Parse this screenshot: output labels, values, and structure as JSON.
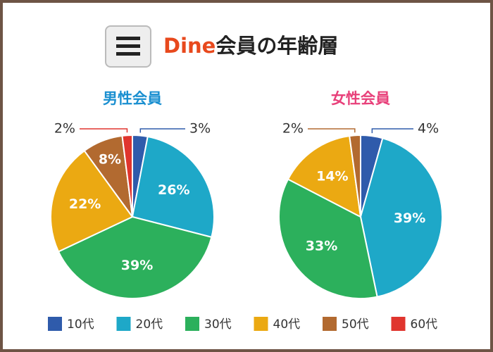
{
  "header": {
    "brand": "Dine",
    "title": "会員の年齢層"
  },
  "chart_data": [
    {
      "type": "pie",
      "title": "男性会員",
      "categories": [
        "10代",
        "20代",
        "30代",
        "40代",
        "50代",
        "60代"
      ],
      "values": [
        3,
        26,
        39,
        22,
        8,
        2
      ],
      "value_labels": [
        "3%",
        "26%",
        "39%",
        "22%",
        "8%",
        "2%"
      ],
      "colors": [
        "#2f5bab",
        "#1ea8c8",
        "#2cb05c",
        "#eba912",
        "#b26a30",
        "#e0352e"
      ]
    },
    {
      "type": "pie",
      "title": "女性会員",
      "categories": [
        "10代",
        "20代",
        "30代",
        "40代",
        "50代"
      ],
      "values": [
        4,
        39,
        33,
        14,
        2
      ],
      "value_labels": [
        "4%",
        "39%",
        "33%",
        "14%",
        "2%"
      ],
      "colors": [
        "#2f5bab",
        "#1ea8c8",
        "#2cb05c",
        "#eba912",
        "#b26a30"
      ]
    }
  ]
}
